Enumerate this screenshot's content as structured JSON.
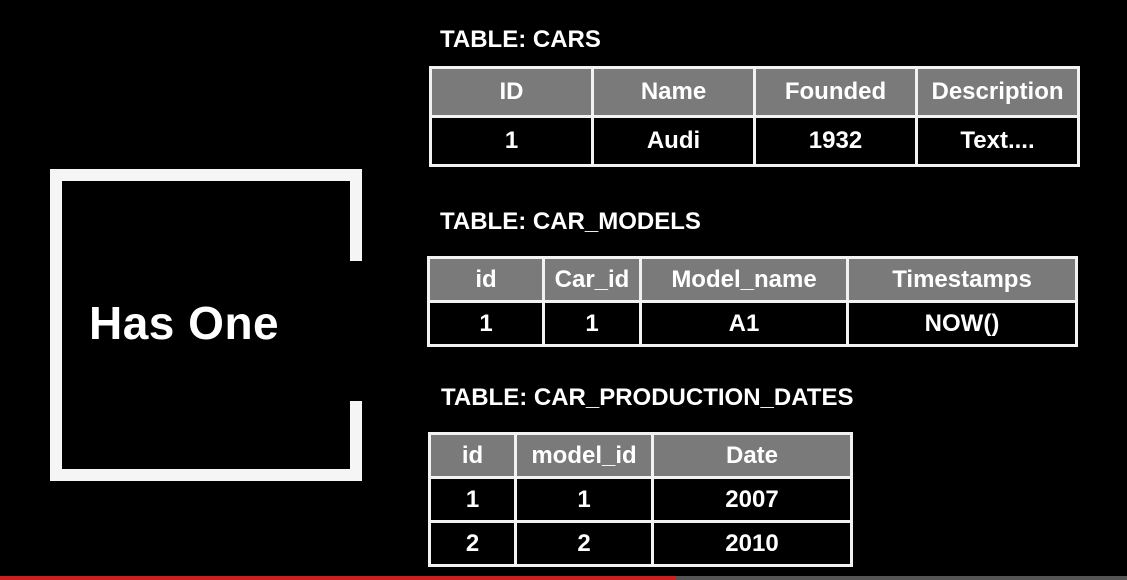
{
  "label": "Has One",
  "tables": {
    "cars": {
      "title": "TABLE: CARS",
      "headers": [
        "ID",
        "Name",
        "Founded",
        "Description"
      ],
      "rows": [
        [
          "1",
          "Audi",
          "1932",
          "Text...."
        ]
      ]
    },
    "car_models": {
      "title": "TABLE: CAR_MODELS",
      "headers": [
        "id",
        "Car_id",
        "Model_name",
        "Timestamps"
      ],
      "rows": [
        [
          "1",
          "1",
          "A1",
          "NOW()"
        ]
      ]
    },
    "car_production_dates": {
      "title": "TABLE: CAR_PRODUCTION_DATES",
      "headers": [
        "id",
        "model_id",
        "Date"
      ],
      "rows": [
        [
          "1",
          "1",
          "2007"
        ],
        [
          "2",
          "2",
          "2010"
        ]
      ]
    }
  },
  "colors": {
    "background": "#000000",
    "header_fill": "#7a7a7a",
    "border": "#f2f2f2",
    "text": "#ffffff",
    "progress": "#cc1f1f"
  },
  "video_progress": 0.6
}
